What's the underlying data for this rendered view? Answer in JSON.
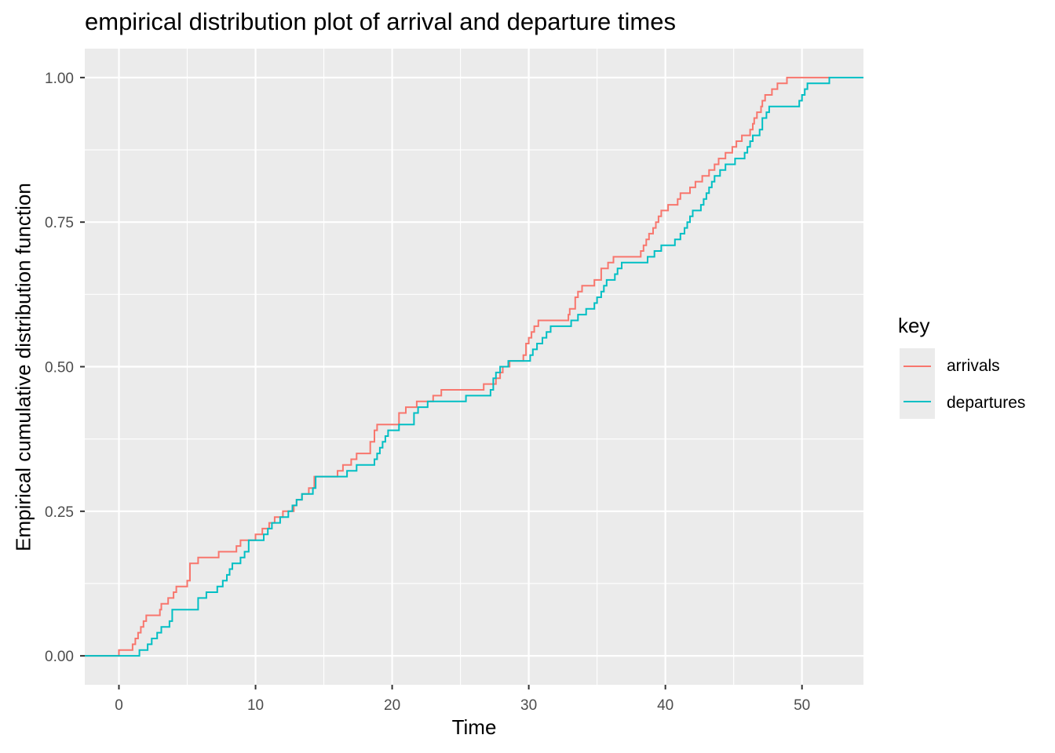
{
  "chart_data": {
    "type": "line",
    "title": "empirical distribution plot of arrival and departure times",
    "xlabel": "Time",
    "ylabel": "Empirical cumulative distribution function",
    "xlim": [
      -2.5,
      54.5
    ],
    "ylim": [
      -0.05,
      1.05
    ],
    "x_ticks": [
      0,
      10,
      20,
      30,
      40,
      50
    ],
    "x_tick_labels": [
      "0",
      "10",
      "20",
      "30",
      "40",
      "50"
    ],
    "y_ticks": [
      0,
      0.25,
      0.5,
      0.75,
      1.0
    ],
    "y_tick_labels": [
      "0.00",
      "0.25",
      "0.50",
      "0.75",
      "1.00"
    ],
    "grid": true,
    "legend": {
      "title": "key",
      "placement": "right"
    },
    "series": [
      {
        "name": "arrivals",
        "color": "#F8766D",
        "step": true,
        "points": [
          [
            -2.5,
            0.0
          ],
          [
            0.0,
            0.01
          ],
          [
            1.0,
            0.02
          ],
          [
            1.2,
            0.03
          ],
          [
            1.4,
            0.04
          ],
          [
            1.6,
            0.05
          ],
          [
            1.8,
            0.06
          ],
          [
            2.0,
            0.07
          ],
          [
            3.0,
            0.08
          ],
          [
            3.1,
            0.09
          ],
          [
            3.6,
            0.1
          ],
          [
            4.0,
            0.11
          ],
          [
            4.2,
            0.12
          ],
          [
            5.0,
            0.13
          ],
          [
            5.2,
            0.16
          ],
          [
            5.8,
            0.17
          ],
          [
            7.3,
            0.18
          ],
          [
            8.6,
            0.19
          ],
          [
            8.9,
            0.2
          ],
          [
            10.0,
            0.21
          ],
          [
            10.5,
            0.22
          ],
          [
            11.0,
            0.23
          ],
          [
            11.4,
            0.24
          ],
          [
            12.0,
            0.25
          ],
          [
            12.8,
            0.26
          ],
          [
            13.0,
            0.27
          ],
          [
            13.4,
            0.28
          ],
          [
            13.9,
            0.29
          ],
          [
            14.3,
            0.31
          ],
          [
            16.0,
            0.32
          ],
          [
            16.4,
            0.33
          ],
          [
            17.0,
            0.34
          ],
          [
            17.4,
            0.35
          ],
          [
            18.4,
            0.37
          ],
          [
            18.7,
            0.39
          ],
          [
            18.9,
            0.4
          ],
          [
            20.5,
            0.42
          ],
          [
            21.0,
            0.43
          ],
          [
            21.8,
            0.44
          ],
          [
            23.0,
            0.45
          ],
          [
            23.6,
            0.46
          ],
          [
            26.7,
            0.47
          ],
          [
            27.6,
            0.48
          ],
          [
            27.9,
            0.49
          ],
          [
            28.1,
            0.5
          ],
          [
            28.6,
            0.51
          ],
          [
            29.6,
            0.52
          ],
          [
            29.8,
            0.54
          ],
          [
            30.0,
            0.55
          ],
          [
            30.2,
            0.56
          ],
          [
            30.4,
            0.57
          ],
          [
            30.7,
            0.58
          ],
          [
            32.9,
            0.59
          ],
          [
            33.0,
            0.6
          ],
          [
            33.4,
            0.62
          ],
          [
            33.6,
            0.63
          ],
          [
            33.9,
            0.64
          ],
          [
            34.8,
            0.65
          ],
          [
            35.3,
            0.67
          ],
          [
            35.8,
            0.68
          ],
          [
            36.2,
            0.69
          ],
          [
            38.2,
            0.7
          ],
          [
            38.4,
            0.71
          ],
          [
            38.6,
            0.72
          ],
          [
            38.8,
            0.73
          ],
          [
            39.1,
            0.74
          ],
          [
            39.3,
            0.75
          ],
          [
            39.5,
            0.76
          ],
          [
            39.7,
            0.77
          ],
          [
            40.2,
            0.78
          ],
          [
            40.9,
            0.79
          ],
          [
            41.1,
            0.8
          ],
          [
            41.8,
            0.81
          ],
          [
            42.2,
            0.82
          ],
          [
            42.7,
            0.83
          ],
          [
            43.2,
            0.84
          ],
          [
            43.6,
            0.85
          ],
          [
            43.9,
            0.86
          ],
          [
            44.4,
            0.87
          ],
          [
            44.9,
            0.88
          ],
          [
            45.2,
            0.89
          ],
          [
            45.6,
            0.9
          ],
          [
            46.2,
            0.91
          ],
          [
            46.4,
            0.92
          ],
          [
            46.5,
            0.93
          ],
          [
            46.7,
            0.94
          ],
          [
            47.0,
            0.95
          ],
          [
            47.1,
            0.96
          ],
          [
            47.3,
            0.97
          ],
          [
            47.8,
            0.98
          ],
          [
            48.2,
            0.99
          ],
          [
            48.9,
            1.0
          ],
          [
            52.0,
            1.0
          ]
        ]
      },
      {
        "name": "departures",
        "color": "#00BFC4",
        "step": true,
        "points": [
          [
            -2.5,
            0.0
          ],
          [
            1.5,
            0.01
          ],
          [
            2.1,
            0.02
          ],
          [
            2.4,
            0.03
          ],
          [
            2.8,
            0.04
          ],
          [
            3.1,
            0.05
          ],
          [
            3.7,
            0.06
          ],
          [
            3.9,
            0.08
          ],
          [
            5.8,
            0.1
          ],
          [
            6.4,
            0.11
          ],
          [
            7.2,
            0.12
          ],
          [
            7.6,
            0.13
          ],
          [
            7.9,
            0.14
          ],
          [
            8.1,
            0.15
          ],
          [
            8.3,
            0.16
          ],
          [
            8.9,
            0.17
          ],
          [
            9.2,
            0.18
          ],
          [
            9.5,
            0.2
          ],
          [
            10.6,
            0.21
          ],
          [
            10.9,
            0.22
          ],
          [
            11.2,
            0.23
          ],
          [
            11.8,
            0.24
          ],
          [
            12.4,
            0.25
          ],
          [
            12.7,
            0.26
          ],
          [
            13.0,
            0.27
          ],
          [
            13.4,
            0.28
          ],
          [
            14.2,
            0.29
          ],
          [
            14.4,
            0.31
          ],
          [
            16.7,
            0.32
          ],
          [
            17.4,
            0.33
          ],
          [
            18.7,
            0.34
          ],
          [
            18.9,
            0.35
          ],
          [
            19.1,
            0.36
          ],
          [
            19.3,
            0.37
          ],
          [
            19.5,
            0.38
          ],
          [
            19.7,
            0.39
          ],
          [
            20.5,
            0.4
          ],
          [
            21.6,
            0.42
          ],
          [
            21.9,
            0.43
          ],
          [
            22.6,
            0.44
          ],
          [
            25.4,
            0.45
          ],
          [
            27.2,
            0.46
          ],
          [
            27.4,
            0.48
          ],
          [
            27.6,
            0.49
          ],
          [
            27.9,
            0.5
          ],
          [
            28.5,
            0.51
          ],
          [
            30.1,
            0.52
          ],
          [
            30.3,
            0.53
          ],
          [
            30.6,
            0.54
          ],
          [
            31.0,
            0.55
          ],
          [
            31.3,
            0.56
          ],
          [
            31.6,
            0.57
          ],
          [
            33.1,
            0.58
          ],
          [
            33.6,
            0.59
          ],
          [
            34.2,
            0.6
          ],
          [
            34.8,
            0.61
          ],
          [
            35.0,
            0.62
          ],
          [
            35.3,
            0.63
          ],
          [
            35.5,
            0.64
          ],
          [
            35.7,
            0.65
          ],
          [
            36.3,
            0.66
          ],
          [
            36.5,
            0.67
          ],
          [
            36.8,
            0.68
          ],
          [
            38.7,
            0.69
          ],
          [
            39.2,
            0.7
          ],
          [
            39.7,
            0.71
          ],
          [
            40.7,
            0.72
          ],
          [
            41.1,
            0.73
          ],
          [
            41.4,
            0.74
          ],
          [
            41.6,
            0.75
          ],
          [
            41.8,
            0.76
          ],
          [
            42.0,
            0.77
          ],
          [
            42.6,
            0.78
          ],
          [
            42.8,
            0.79
          ],
          [
            43.0,
            0.8
          ],
          [
            43.2,
            0.81
          ],
          [
            43.4,
            0.82
          ],
          [
            43.6,
            0.83
          ],
          [
            44.0,
            0.84
          ],
          [
            44.4,
            0.85
          ],
          [
            45.1,
            0.86
          ],
          [
            45.8,
            0.87
          ],
          [
            46.0,
            0.88
          ],
          [
            46.2,
            0.89
          ],
          [
            46.4,
            0.9
          ],
          [
            46.9,
            0.91
          ],
          [
            47.1,
            0.93
          ],
          [
            47.4,
            0.94
          ],
          [
            47.6,
            0.95
          ],
          [
            49.8,
            0.96
          ],
          [
            50.0,
            0.97
          ],
          [
            50.2,
            0.98
          ],
          [
            50.4,
            0.99
          ],
          [
            52.0,
            1.0
          ],
          [
            54.5,
            1.0
          ]
        ]
      }
    ]
  }
}
